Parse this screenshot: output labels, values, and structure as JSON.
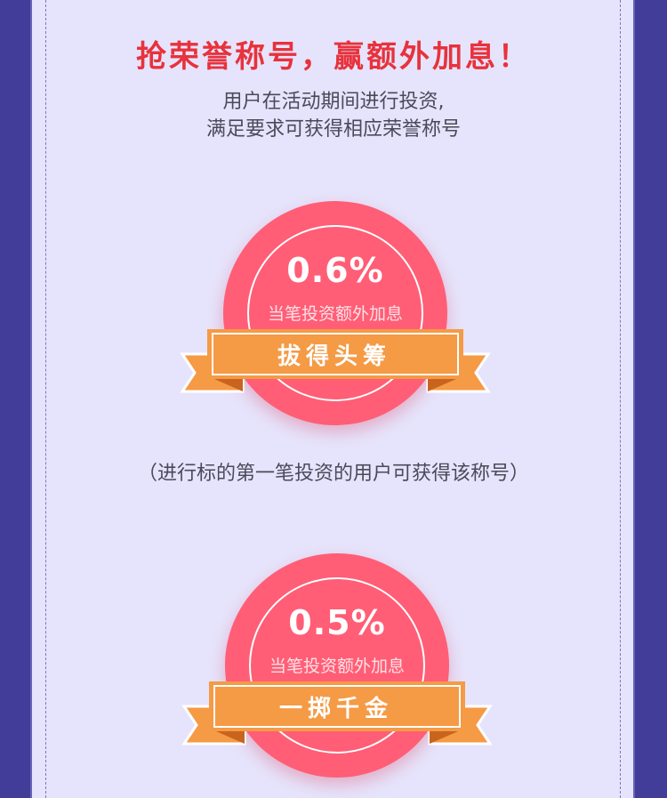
{
  "header": {
    "headline": "抢荣誉称号，赢额外加息！",
    "intro_line1": "用户在活动期间进行投资,",
    "intro_line2": "满足要求可获得相应荣誉称号"
  },
  "badges": [
    {
      "rate": "0.6%",
      "sub": "当笔投资额外加息",
      "title": "拔得头筹"
    },
    {
      "rate": "0.5%",
      "sub": "当笔投资额外加息",
      "title": "一掷千金"
    }
  ],
  "note": "（进行标的第一笔投资的用户可获得该称号）",
  "colors": {
    "accent": "#e8323c",
    "badge": "#ff5e76",
    "ribbon": "#f59a45",
    "background": "#e6e4fc",
    "frame": "#433d9a"
  }
}
